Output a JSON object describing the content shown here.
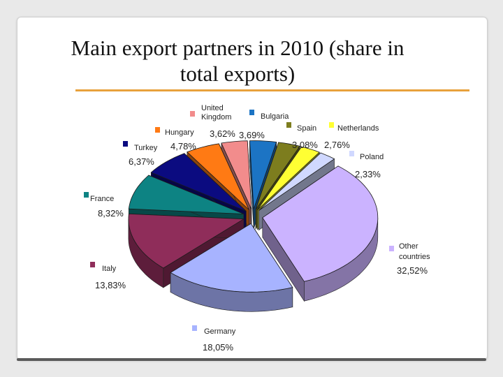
{
  "slide": {
    "title_line1": "Main export partners in 2010 (share in",
    "title_line2": "total exports)",
    "rule_color": "#e8a13c"
  },
  "chart_data": {
    "type": "pie",
    "title": "Main export partners in 2010 (share in total exports)",
    "three_d": true,
    "exploded": true,
    "slices": [
      {
        "label": "Bulgaria",
        "value": 3.69,
        "value_label": "3,69%",
        "color": "#1c74c4"
      },
      {
        "label": "Spain",
        "value": 3.08,
        "value_label": "3,08%",
        "color": "#7d7d1e"
      },
      {
        "label": "Netherlands",
        "value": 2.76,
        "value_label": "2,76%",
        "color": "#ffff33"
      },
      {
        "label": "Poland",
        "value": 2.33,
        "value_label": "2,33%",
        "color": "#d0d8ff"
      },
      {
        "label": "Other countries",
        "value": 32.52,
        "value_label": "32,52%",
        "color": "#cbb3ff"
      },
      {
        "label": "Germany",
        "value": 18.05,
        "value_label": "18,05%",
        "color": "#a7b3ff"
      },
      {
        "label": "Italy",
        "value": 13.83,
        "value_label": "13,83%",
        "color": "#8f2d5a"
      },
      {
        "label": "France",
        "value": 8.32,
        "value_label": "8,32%",
        "color": "#0d8383"
      },
      {
        "label": "Turkey",
        "value": 6.37,
        "value_label": "6,37%",
        "color": "#0b0b80"
      },
      {
        "label": "Hungary",
        "value": 4.78,
        "value_label": "4,78%",
        "color": "#ff7a14"
      },
      {
        "label": "United Kingdom",
        "value": 3.62,
        "value_label": "3,62%",
        "color": "#f28c8c"
      }
    ]
  }
}
